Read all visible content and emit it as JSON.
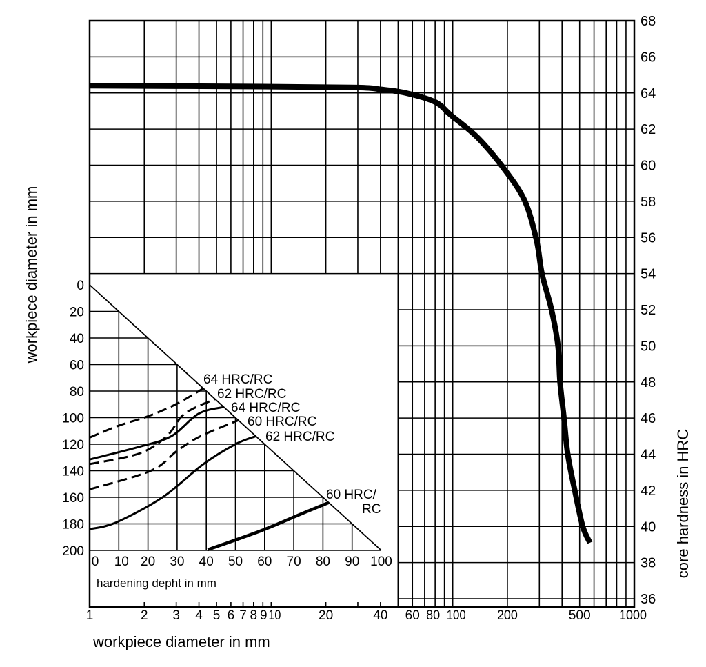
{
  "chart_data": [
    {
      "type": "line",
      "xlabel": "workpiece diameter in mm",
      "ylabel": "core hardness in HRC",
      "x_scale": "log",
      "xlim": [
        1,
        1000
      ],
      "ylim": [
        35.5,
        68
      ],
      "grid": true,
      "x_ticks": [
        1,
        2,
        3,
        4,
        5,
        6,
        7,
        8,
        9,
        10,
        20,
        40,
        60,
        80,
        100,
        200,
        500,
        1000
      ],
      "y_ticks": [
        68,
        66,
        64,
        62,
        60,
        58,
        56,
        54,
        52,
        50,
        48,
        46,
        44,
        42,
        40,
        38,
        36
      ],
      "series": [
        {
          "x": [
            1,
            10,
            30,
            40,
            55,
            80,
            97,
            138,
            195,
            250,
            290,
            310,
            350,
            380,
            390,
            410,
            430,
            470,
            520,
            570
          ],
          "y": [
            64.4,
            64.35,
            64.3,
            64.2,
            64.0,
            63.5,
            62.8,
            61.5,
            59.7,
            58.0,
            55.8,
            54,
            52,
            50,
            48,
            46,
            44,
            42,
            40,
            39.1
          ]
        }
      ]
    },
    {
      "type": "line",
      "xlabel": "hardening depht in mm",
      "ylabel": "workpiece diameter in mm",
      "xlim": [
        0,
        100
      ],
      "ylim": [
        0,
        200
      ],
      "y_inverted": true,
      "grid": true,
      "x_ticks": [
        0,
        10,
        20,
        30,
        40,
        50,
        60,
        70,
        80,
        90,
        100
      ],
      "y_ticks": [
        0,
        20,
        40,
        60,
        80,
        100,
        120,
        140,
        160,
        180,
        200
      ],
      "boundary_line": {
        "x": [
          0,
          100
        ],
        "y": [
          0,
          200
        ]
      },
      "series": [
        {
          "name": "64 HRC/RC",
          "style": "dashed",
          "x": [
            0,
            10,
            20,
            29.5,
            39
          ],
          "y": [
            115,
            106,
            99,
            90,
            78
          ]
        },
        {
          "name": "62 HRC/RC",
          "style": "dashed",
          "x": [
            0,
            17,
            26.4,
            32.6,
            43
          ],
          "y": [
            135,
            127,
            114,
            97,
            86
          ]
        },
        {
          "name": "64 HRC/RC",
          "style": "solid",
          "x": [
            0,
            17,
            28,
            37.4,
            46
          ],
          "y": [
            131.5,
            122,
            114,
            97,
            92
          ]
        },
        {
          "name": "60 HRC/RC",
          "style": "dashed",
          "x": [
            0,
            21,
            30,
            38,
            51
          ],
          "y": [
            154,
            140,
            125,
            114,
            102
          ]
        },
        {
          "name": "62 HRC/RC",
          "style": "solid",
          "x": [
            0,
            9,
            25,
            39,
            50,
            57
          ],
          "y": [
            184,
            179,
            160,
            135,
            120,
            114
          ]
        },
        {
          "name": "60 HRC/RC",
          "style": "solid-thick",
          "x": [
            40.5,
            59,
            72,
            82
          ],
          "y": [
            199.5,
            185,
            173,
            164
          ]
        }
      ]
    }
  ],
  "labels": {
    "left_axis": "workpiece diameter in mm",
    "right_axis": "core hardness in HRC",
    "bottom_axis": "workpiece diameter in mm",
    "inset_axis": "hardening depht in mm",
    "curve_labels": [
      "64 HRC/RC",
      "62 HRC/RC",
      "64 HRC/RC",
      "60 HRC/RC",
      "62 HRC/RC",
      "60 HRC/",
      "RC"
    ]
  },
  "colors": {
    "ink": "#000000",
    "background": "#ffffff"
  }
}
